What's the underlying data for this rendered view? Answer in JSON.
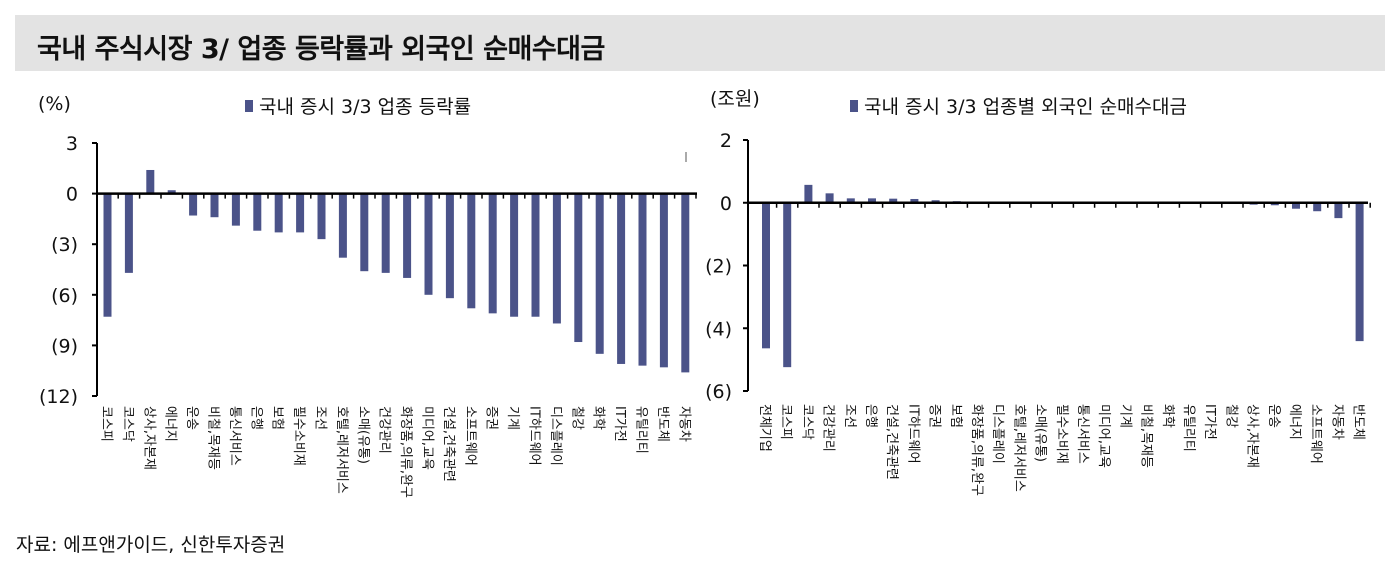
{
  "title": "국내 주식시장 3/ 업종 등락률과 외국인 순매수대금",
  "source": "자료: 에프앤가이드, 신한투자증권",
  "colors": {
    "bar": "#4b5389",
    "title_bg": "#e3e3e3"
  },
  "chart_data": [
    {
      "type": "bar",
      "ylabel": "(%)",
      "legend": "국내 증시 3/3 업종 등락률",
      "legend_position": "top",
      "ylim": [
        -12,
        3
      ],
      "yticks": [
        3,
        0,
        -3,
        -6,
        -9,
        -12
      ],
      "ytick_labels": [
        "3",
        "0",
        "(3)",
        "(6)",
        "(9)",
        "(12)"
      ],
      "grid": false,
      "categories": [
        "코스피",
        "코스닥",
        "상사,자본재",
        "에너지",
        "운송",
        "비철,목재등",
        "통신서비스",
        "은행",
        "보험",
        "필수소비재",
        "조선",
        "호텔,레저서비스",
        "소매(유통)",
        "건강관리",
        "화장품,의류,완구",
        "미디어,교육",
        "건설,건축관련",
        "소프트웨어",
        "증권",
        "기계",
        "IT하드웨어",
        "디스플레이",
        "철강",
        "화학",
        "IT가전",
        "유틸리티",
        "반도체",
        "자동차"
      ],
      "values": [
        -7.3,
        -4.7,
        1.4,
        0.2,
        -1.3,
        -1.4,
        -1.9,
        -2.2,
        -2.3,
        -2.3,
        -2.7,
        -3.8,
        -4.6,
        -4.7,
        -5.0,
        -6.0,
        -6.2,
        -6.8,
        -7.1,
        -7.3,
        -7.3,
        -7.7,
        -8.8,
        -9.5,
        -10.1,
        -10.2,
        -10.3,
        -10.6
      ]
    },
    {
      "type": "bar",
      "ylabel": "(조원)",
      "legend": "국내 증시 3/3 업종별 외국인 순매수대금",
      "legend_position": "top",
      "ylim": [
        -6,
        2
      ],
      "yticks": [
        2,
        0,
        -2,
        -4,
        -6
      ],
      "ytick_labels": [
        "2",
        "0",
        "(2)",
        "(4)",
        "(6)"
      ],
      "grid": false,
      "categories": [
        "전체기업",
        "코스피",
        "코스닥",
        "건강관리",
        "조선",
        "은행",
        "건설,건축관련",
        "IT하드웨어",
        "증권",
        "보험",
        "화장품,의류,완구",
        "디스플레이",
        "호텔,레저서비스",
        "소매(유통)",
        "필수소비재",
        "통신서비스",
        "미디어,교육",
        "기계",
        "비철,목재등",
        "화학",
        "유틸리티",
        "IT가전",
        "철강",
        "상사,자본재",
        "운송",
        "에너지",
        "소프트웨어",
        "자동차",
        "반도체"
      ],
      "values": [
        -4.64,
        -5.24,
        0.57,
        0.3,
        0.14,
        0.14,
        0.13,
        0.12,
        0.08,
        0.05,
        0.01,
        0.0,
        0.0,
        0.0,
        0.0,
        0.0,
        -0.01,
        -0.01,
        -0.02,
        -0.02,
        -0.03,
        -0.03,
        -0.04,
        -0.06,
        -0.08,
        -0.19,
        -0.27,
        -0.49,
        -4.41
      ]
    }
  ]
}
